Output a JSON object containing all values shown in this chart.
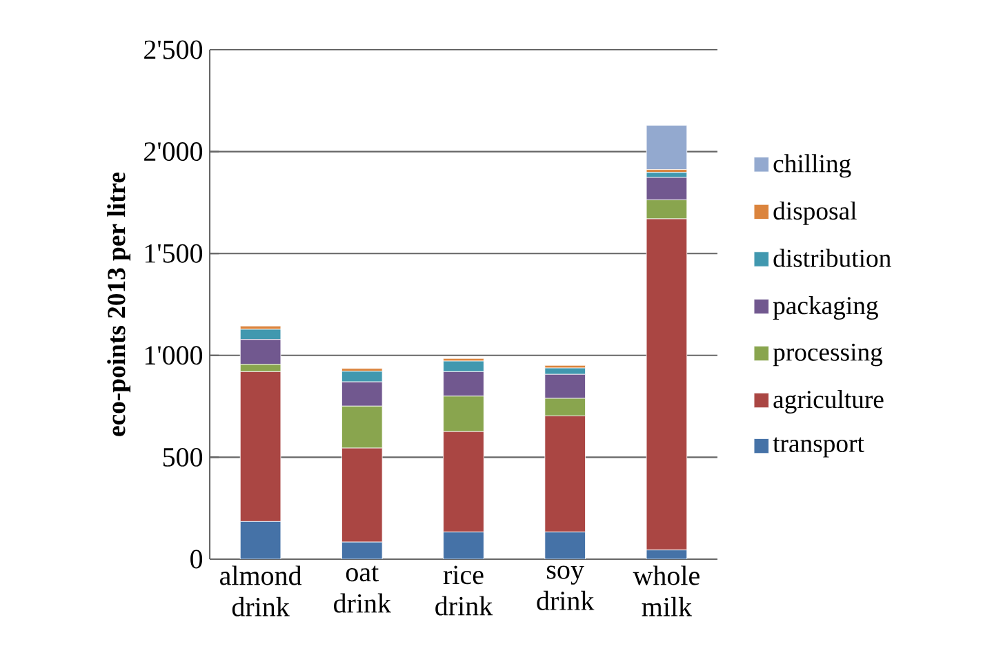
{
  "chart_data": {
    "type": "bar",
    "stacked": true,
    "ylabel": "eco-points 2013 per litre",
    "categories": [
      "almond drink",
      "oat drink",
      "rice drink",
      "soy drink",
      "whole milk"
    ],
    "series": [
      {
        "name": "transport",
        "color": "#4572a7",
        "values": [
          185,
          84,
          133,
          133,
          45
        ]
      },
      {
        "name": "agriculture",
        "color": "#aa4643",
        "values": [
          735,
          461,
          493,
          570,
          1625
        ]
      },
      {
        "name": "processing",
        "color": "#89a54e",
        "values": [
          36,
          206,
          174,
          86,
          93
        ]
      },
      {
        "name": "packaging",
        "color": "#71588f",
        "values": [
          122,
          119,
          120,
          118,
          110
        ]
      },
      {
        "name": "distribution",
        "color": "#4198af",
        "values": [
          50,
          52,
          52,
          31,
          25
        ]
      },
      {
        "name": "disposal",
        "color": "#db843d",
        "values": [
          16,
          14,
          13,
          13,
          14
        ]
      },
      {
        "name": "chilling",
        "color": "#93a9cf",
        "values": [
          0,
          0,
          0,
          0,
          217
        ]
      }
    ],
    "ylim": [
      0,
      2500
    ],
    "yticks": [
      0,
      500,
      {
        "value": 1000,
        "label": "1'000"
      },
      {
        "value": 1500,
        "label": "1'500"
      },
      {
        "value": 2000,
        "label": "2'000"
      },
      {
        "value": 2500,
        "label": "2'500"
      }
    ],
    "grid": "y",
    "legend": "right"
  }
}
